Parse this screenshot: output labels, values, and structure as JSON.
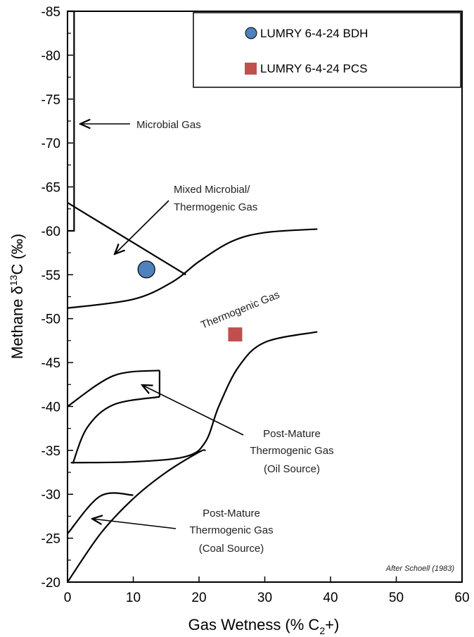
{
  "chart_data": {
    "type": "scatter",
    "xlabel": "Gas Wetness (% C",
    "xlabel_sub": "2",
    "xlabel_tail": "+)",
    "ylabel_prefix": "Methane  δ",
    "ylabel_sup": "13",
    "ylabel_tail": "C (‰)",
    "xlim": [
      0,
      60
    ],
    "ylim": [
      -20,
      -85
    ],
    "x_ticks": [
      "0",
      "10",
      "20",
      "30",
      "40",
      "50",
      "60"
    ],
    "y_ticks": [
      "-85",
      "-80",
      "-75",
      "-70",
      "-65",
      "-60",
      "-55",
      "-50",
      "-45",
      "-40",
      "-35",
      "-30",
      "-25",
      "-20"
    ],
    "x_tick_values": [
      0,
      10,
      20,
      30,
      40,
      50,
      60
    ],
    "y_tick_values": [
      -85,
      -80,
      -75,
      -70,
      -65,
      -60,
      -55,
      -50,
      -45,
      -40,
      -35,
      -30,
      -25,
      -20
    ],
    "grid": false,
    "legend_position": "top-right",
    "series": [
      {
        "name": "LUMRY 6-4-24 BDH",
        "marker": "circle",
        "color": "#4f81bd",
        "points": [
          [
            12.0,
            -55.6
          ]
        ]
      },
      {
        "name": "LUMRY 6-4-24 PCS",
        "marker": "square",
        "color": "#c0504d",
        "points": [
          [
            25.5,
            -48.2
          ]
        ]
      }
    ],
    "annotations": {
      "microbial": "Microbial Gas",
      "mixed_1": "Mixed Microbial/",
      "mixed_2": "Thermogenic Gas",
      "thermogenic": "Thermogenic Gas",
      "post_oil_1": "Post-Mature",
      "post_oil_2": "Thermogenic Gas",
      "post_oil_3": "(Oil Source)",
      "post_coal_1": "Post-Mature",
      "post_coal_2": "Thermogenic Gas",
      "post_coal_3": "(Coal Source)",
      "credit": "After Schoell (1983)"
    },
    "boundaries": {
      "microbial_box": [
        [
          0,
          -85
        ],
        [
          1,
          -85
        ],
        [
          1,
          -60
        ],
        [
          0,
          -60
        ]
      ],
      "mixed_line": [
        [
          0,
          -63.2
        ],
        [
          18,
          -55
        ]
      ],
      "thermogenic_lower": [
        [
          0,
          -51.2
        ],
        [
          10,
          -52.2
        ],
        [
          16,
          -54.2
        ],
        [
          20,
          -56.5
        ],
        [
          25,
          -58.8
        ],
        [
          30,
          -59.8
        ],
        [
          38,
          -60.2
        ]
      ],
      "oil_upper": [
        [
          0,
          -40
        ],
        [
          7,
          -43.5
        ],
        [
          14,
          -44.1
        ]
      ],
      "oil_right": [
        [
          14,
          -44.1
        ],
        [
          14,
          -41.1
        ]
      ],
      "oil_lower": [
        [
          0.8,
          -33.5
        ],
        [
          3,
          -37.6
        ],
        [
          7,
          -40.2
        ],
        [
          14,
          -41.1
        ]
      ],
      "oil_base": [
        [
          0.5,
          -33.6
        ],
        [
          10,
          -33.7
        ],
        [
          18,
          -34.3
        ],
        [
          21,
          -36
        ],
        [
          23,
          -40
        ],
        [
          26,
          -44.5
        ],
        [
          30,
          -47.3
        ],
        [
          38,
          -48.5
        ]
      ],
      "coal_upper": [
        [
          0,
          -25.5
        ],
        [
          5,
          -29.8
        ],
        [
          10,
          -29.9
        ]
      ],
      "coal_lower": [
        [
          0,
          -20
        ],
        [
          5,
          -25.5
        ],
        [
          10,
          -29.5
        ],
        [
          15,
          -32.5
        ],
        [
          20,
          -34.8
        ],
        [
          21,
          -35
        ]
      ]
    }
  }
}
